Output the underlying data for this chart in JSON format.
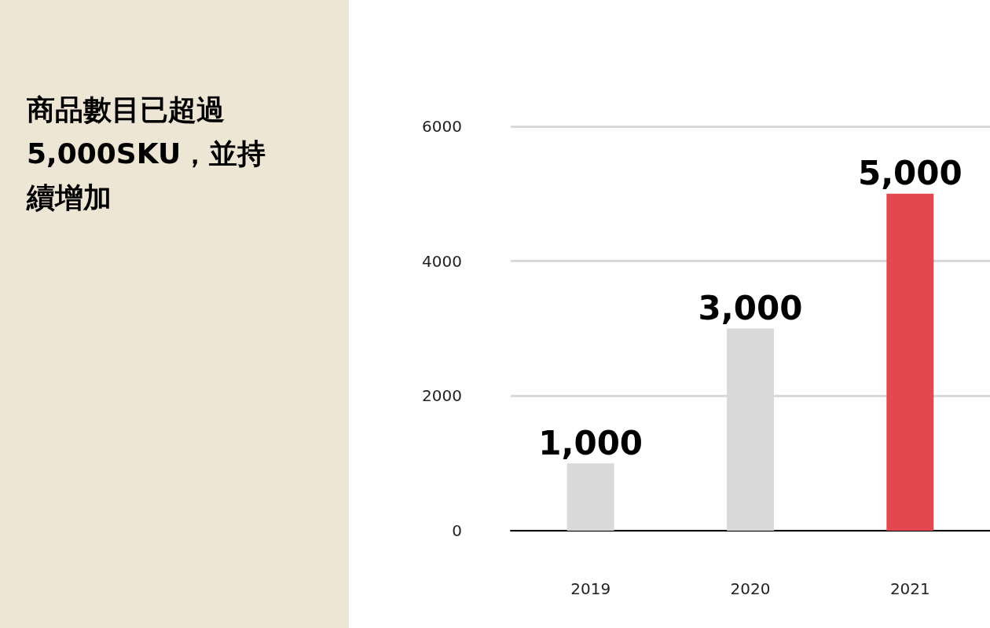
{
  "chart_data": {
    "type": "bar",
    "title": "商品數目已超過5,000SKU，並持續增加",
    "categories": [
      "2019",
      "2020",
      "2021"
    ],
    "values": [
      1000,
      3000,
      5000
    ],
    "value_labels": [
      "1,000",
      "3,000",
      "5,000"
    ],
    "colors": [
      "#d9d9d9",
      "#d9d9d9",
      "#e34850"
    ],
    "ylim": [
      0,
      6000
    ],
    "yticks": [
      0,
      2000,
      4000,
      6000
    ],
    "grid": "y"
  }
}
